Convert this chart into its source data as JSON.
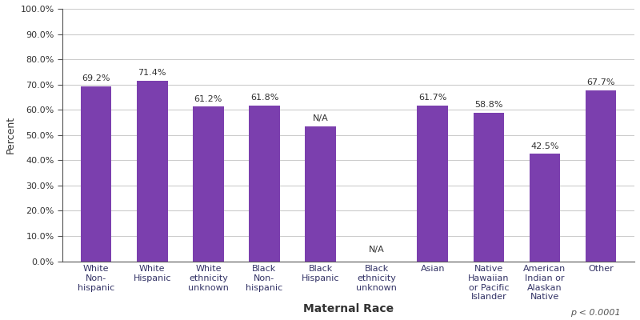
{
  "categories": [
    "White\nNon-\nhispanic",
    "White\nHispanic",
    "White\nethnicity\nunknown",
    "Black\nNon-\nhispanic",
    "Black\nHispanic",
    "Black\nethnicity\nunknown",
    "Asian",
    "Native\nHawaiian\nor Pacific\nIslander",
    "American\nIndian or\nAlaskan\nNative",
    "Other"
  ],
  "values": [
    69.2,
    71.4,
    61.2,
    61.8,
    53.5,
    0,
    61.7,
    58.8,
    42.5,
    67.7
  ],
  "na_bars": [
    false,
    false,
    false,
    false,
    true,
    true,
    false,
    false,
    false,
    false
  ],
  "labels": [
    "69.2%",
    "71.4%",
    "61.2%",
    "61.8%",
    "N/A",
    "N/A",
    "61.7%",
    "58.8%",
    "42.5%",
    "67.7%"
  ],
  "bar_color": "#7B3FAE",
  "ylabel": "Percent",
  "xlabel": "Maternal Race",
  "p_value": "p < 0.0001",
  "ylim": [
    0,
    100
  ],
  "yticks": [
    0,
    10,
    20,
    30,
    40,
    50,
    60,
    70,
    80,
    90,
    100
  ],
  "ytick_labels": [
    "0.0%",
    "10.0%",
    "20.0%",
    "30.0%",
    "40.0%",
    "50.0%",
    "60.0%",
    "70.0%",
    "80.0%",
    "90.0%",
    "100.0%"
  ],
  "label_fontsize": 8,
  "tick_fontsize": 8,
  "xlabel_fontsize": 10,
  "ylabel_fontsize": 9,
  "pval_fontsize": 8
}
